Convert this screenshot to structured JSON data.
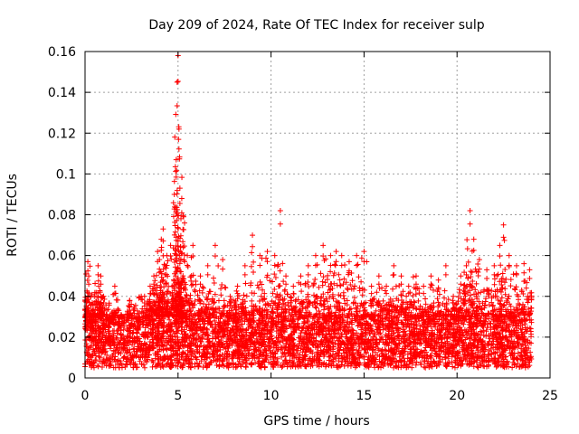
{
  "chart_data": {
    "type": "scatter",
    "title": "Day 209 of 2024, Rate Of TEC Index for receiver sulp",
    "xlabel": "GPS time / hours",
    "ylabel": "ROTI / TECUs",
    "xlim": [
      0,
      25
    ],
    "ylim": [
      0,
      0.16
    ],
    "xticks": [
      0,
      5,
      10,
      15,
      20,
      25
    ],
    "xtick_labels": [
      "0",
      "5",
      "10",
      "15",
      "20",
      "25"
    ],
    "yticks": [
      0,
      0.02,
      0.04,
      0.06,
      0.08,
      0.1,
      0.12,
      0.14,
      0.16
    ],
    "ytick_labels": [
      "0",
      "0.02",
      "0.04",
      "0.06",
      "0.08",
      "0.1",
      "0.12",
      "0.14",
      "0.16"
    ],
    "grid": true,
    "marker": "+",
    "color": "#ff0000",
    "series": [
      {
        "name": "ROTI",
        "x": [
          0.05,
          0.15,
          0.2,
          0.3,
          0.5,
          0.7,
          0.85,
          1.0,
          1.3,
          1.6,
          2.0,
          2.4,
          2.8,
          3.2,
          3.5,
          3.7,
          3.9,
          4.0,
          4.1,
          4.2,
          4.3,
          4.4,
          4.6,
          4.8,
          4.9,
          4.95,
          5.0,
          5.05,
          5.1,
          5.2,
          5.3,
          5.5,
          5.8,
          6.2,
          6.6,
          7.0,
          7.4,
          7.8,
          8.2,
          8.6,
          9.0,
          9.4,
          9.8,
          10.2,
          10.5,
          10.8,
          11.2,
          11.6,
          12.0,
          12.4,
          12.8,
          13.2,
          13.5,
          13.8,
          14.2,
          14.6,
          15.0,
          15.4,
          15.8,
          16.2,
          16.6,
          17.0,
          17.4,
          17.8,
          18.2,
          18.6,
          19.0,
          19.4,
          19.8,
          20.2,
          20.5,
          20.7,
          20.9,
          21.2,
          21.6,
          22.0,
          22.3,
          22.5,
          22.8,
          23.2,
          23.6,
          23.9
        ],
        "y": [
          0.03,
          0.057,
          0.05,
          0.02,
          0.04,
          0.055,
          0.05,
          0.04,
          0.025,
          0.045,
          0.03,
          0.038,
          0.02,
          0.04,
          0.045,
          0.05,
          0.062,
          0.058,
          0.068,
          0.073,
          0.055,
          0.06,
          0.065,
          0.09,
          0.107,
          0.145,
          0.158,
          0.122,
          0.093,
          0.088,
          0.079,
          0.06,
          0.065,
          0.05,
          0.055,
          0.065,
          0.058,
          0.04,
          0.045,
          0.055,
          0.07,
          0.06,
          0.062,
          0.06,
          0.082,
          0.05,
          0.045,
          0.05,
          0.055,
          0.06,
          0.065,
          0.06,
          0.062,
          0.06,
          0.057,
          0.06,
          0.062,
          0.045,
          0.05,
          0.045,
          0.055,
          0.05,
          0.045,
          0.05,
          0.045,
          0.05,
          0.048,
          0.055,
          0.04,
          0.05,
          0.055,
          0.082,
          0.068,
          0.058,
          0.053,
          0.055,
          0.065,
          0.075,
          0.06,
          0.055,
          0.056,
          0.053
        ],
        "baseline_band": [
          0.005,
          0.03
        ]
      }
    ]
  }
}
